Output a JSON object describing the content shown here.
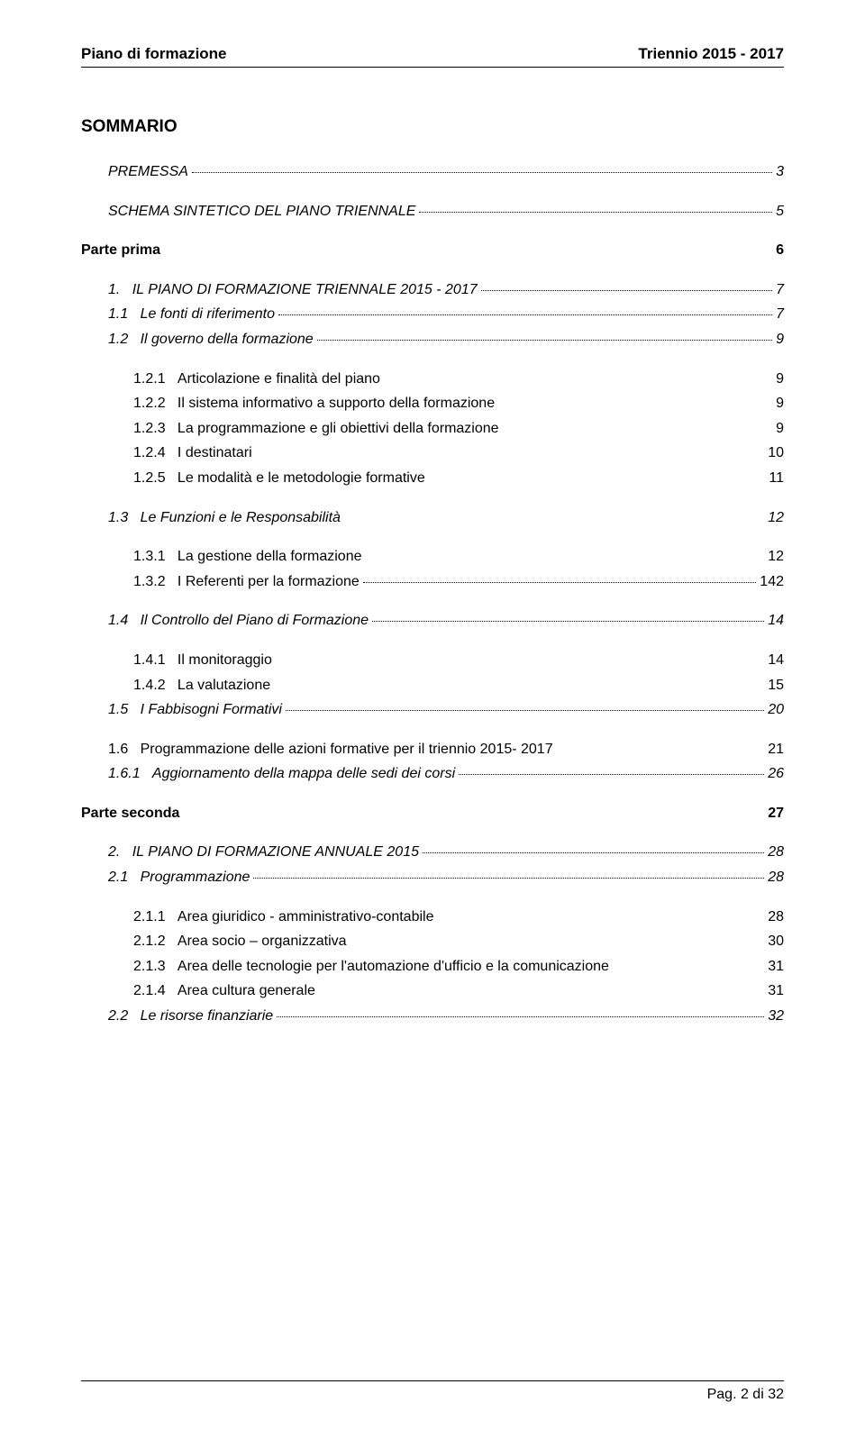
{
  "header": {
    "left": "Piano di formazione",
    "right": "Triennio 2015 - 2017"
  },
  "title": "SOMMARIO",
  "toc": [
    {
      "indent": 1,
      "num": "",
      "label": "PREMESSA",
      "page": "3",
      "style": "italic smallcaps",
      "leader": true,
      "gap": false
    },
    {
      "indent": 1,
      "num": "",
      "label": "SCHEMA SINTETICO DEL PIANO TRIENNALE",
      "page": "5",
      "style": "italic smallcaps",
      "leader": true,
      "gap": true
    },
    {
      "indent": 0,
      "num": "",
      "label": "Parte prima",
      "page": "6",
      "style": "bold",
      "leader": false,
      "gap": true
    },
    {
      "indent": 1,
      "num": "1.",
      "label": "IL PIANO DI FORMAZIONE TRIENNALE 2015 - 2017",
      "page": "7",
      "style": "italic smallcaps",
      "leader": true,
      "gap": true
    },
    {
      "indent": 1,
      "num": "1.1",
      "label": "Le fonti di riferimento",
      "page": "7",
      "style": "italic",
      "leader": true,
      "gap": false
    },
    {
      "indent": 1,
      "num": "1.2",
      "label": "Il governo della formazione",
      "page": "9",
      "style": "italic",
      "leader": true,
      "gap": false
    },
    {
      "indent": 2,
      "num": "1.2.1",
      "label": "Articolazione e finalità del piano",
      "page": "9",
      "style": "",
      "leader": false,
      "gap": true
    },
    {
      "indent": 2,
      "num": "1.2.2",
      "label": "Il sistema informativo a supporto della formazione",
      "page": "9",
      "style": "",
      "leader": false,
      "gap": false
    },
    {
      "indent": 2,
      "num": "1.2.3",
      "label": "La programmazione e gli obiettivi della formazione",
      "page": "9",
      "style": "",
      "leader": false,
      "gap": false
    },
    {
      "indent": 2,
      "num": "1.2.4",
      "label": "I destinatari",
      "page": "10",
      "style": "",
      "leader": false,
      "gap": false
    },
    {
      "indent": 2,
      "num": "1.2.5",
      "label": "Le modalità e le metodologie formative",
      "page": "11",
      "style": "",
      "leader": false,
      "gap": false
    },
    {
      "indent": 1,
      "num": "1.3",
      "label": "Le Funzioni e le Responsabilità",
      "page": "12",
      "style": "italic",
      "leader": false,
      "gap": true
    },
    {
      "indent": 2,
      "num": "1.3.1",
      "label": "La gestione della formazione",
      "page": "12",
      "style": "",
      "leader": false,
      "gap": true
    },
    {
      "indent": 2,
      "num": "1.3.2",
      "label": "I Referenti per la formazione",
      "page": "142",
      "style": "",
      "leader": true,
      "gap": false
    },
    {
      "indent": 1,
      "num": "1.4",
      "label": "Il Controllo del Piano di Formazione",
      "page": "14",
      "style": "italic",
      "leader": true,
      "gap": true,
      "leaderBlank": true
    },
    {
      "indent": 2,
      "num": "1.4.1",
      "label": "Il monitoraggio",
      "page": "14",
      "style": "",
      "leader": false,
      "gap": true
    },
    {
      "indent": 2,
      "num": "1.4.2",
      "label": "La valutazione",
      "page": "15",
      "style": "",
      "leader": false,
      "gap": false
    },
    {
      "indent": 1,
      "num": "1.5",
      "label": "I Fabbisogni Formativi",
      "page": "20",
      "style": "italic",
      "leader": true,
      "gap": false
    },
    {
      "indent": 1,
      "num": "1.6",
      "label": "Programmazione delle azioni formative per il triennio 2015- 2017",
      "page": "21",
      "style": "",
      "leader": false,
      "gap": true
    },
    {
      "indent": 1,
      "num": "1.6.1",
      "label": "Aggiornamento della mappa delle sedi dei corsi",
      "page": "26",
      "style": "italic",
      "leader": true,
      "gap": false
    },
    {
      "indent": 0,
      "num": "",
      "label": "Parte seconda",
      "page": "27",
      "style": "bold",
      "leader": false,
      "gap": true
    },
    {
      "indent": 1,
      "num": "2.",
      "label": "IL PIANO DI FORMAZIONE ANNUALE 2015",
      "page": "28",
      "style": "italic smallcaps",
      "leader": true,
      "gap": true
    },
    {
      "indent": 1,
      "num": "2.1",
      "label": "Programmazione",
      "page": "28",
      "style": "italic",
      "leader": true,
      "gap": false
    },
    {
      "indent": 2,
      "num": "2.1.1",
      "label": "Area giuridico - amministrativo-contabile",
      "page": "28",
      "style": "",
      "leader": false,
      "gap": true
    },
    {
      "indent": 2,
      "num": "2.1.2",
      "label": "Area socio – organizzativa",
      "page": "30",
      "style": "",
      "leader": false,
      "gap": false
    },
    {
      "indent": 2,
      "num": "2.1.3",
      "label": "Area delle tecnologie per l'automazione d'ufficio e la comunicazione",
      "page": "31",
      "style": "",
      "leader": false,
      "gap": false
    },
    {
      "indent": 2,
      "num": "2.1.4",
      "label": "Area cultura generale",
      "page": "31",
      "style": "",
      "leader": false,
      "gap": false
    },
    {
      "indent": 1,
      "num": "2.2",
      "label": "Le risorse finanziarie",
      "page": "32",
      "style": "italic",
      "leader": true,
      "gap": false
    }
  ],
  "footer": "Pag. 2 di 32"
}
